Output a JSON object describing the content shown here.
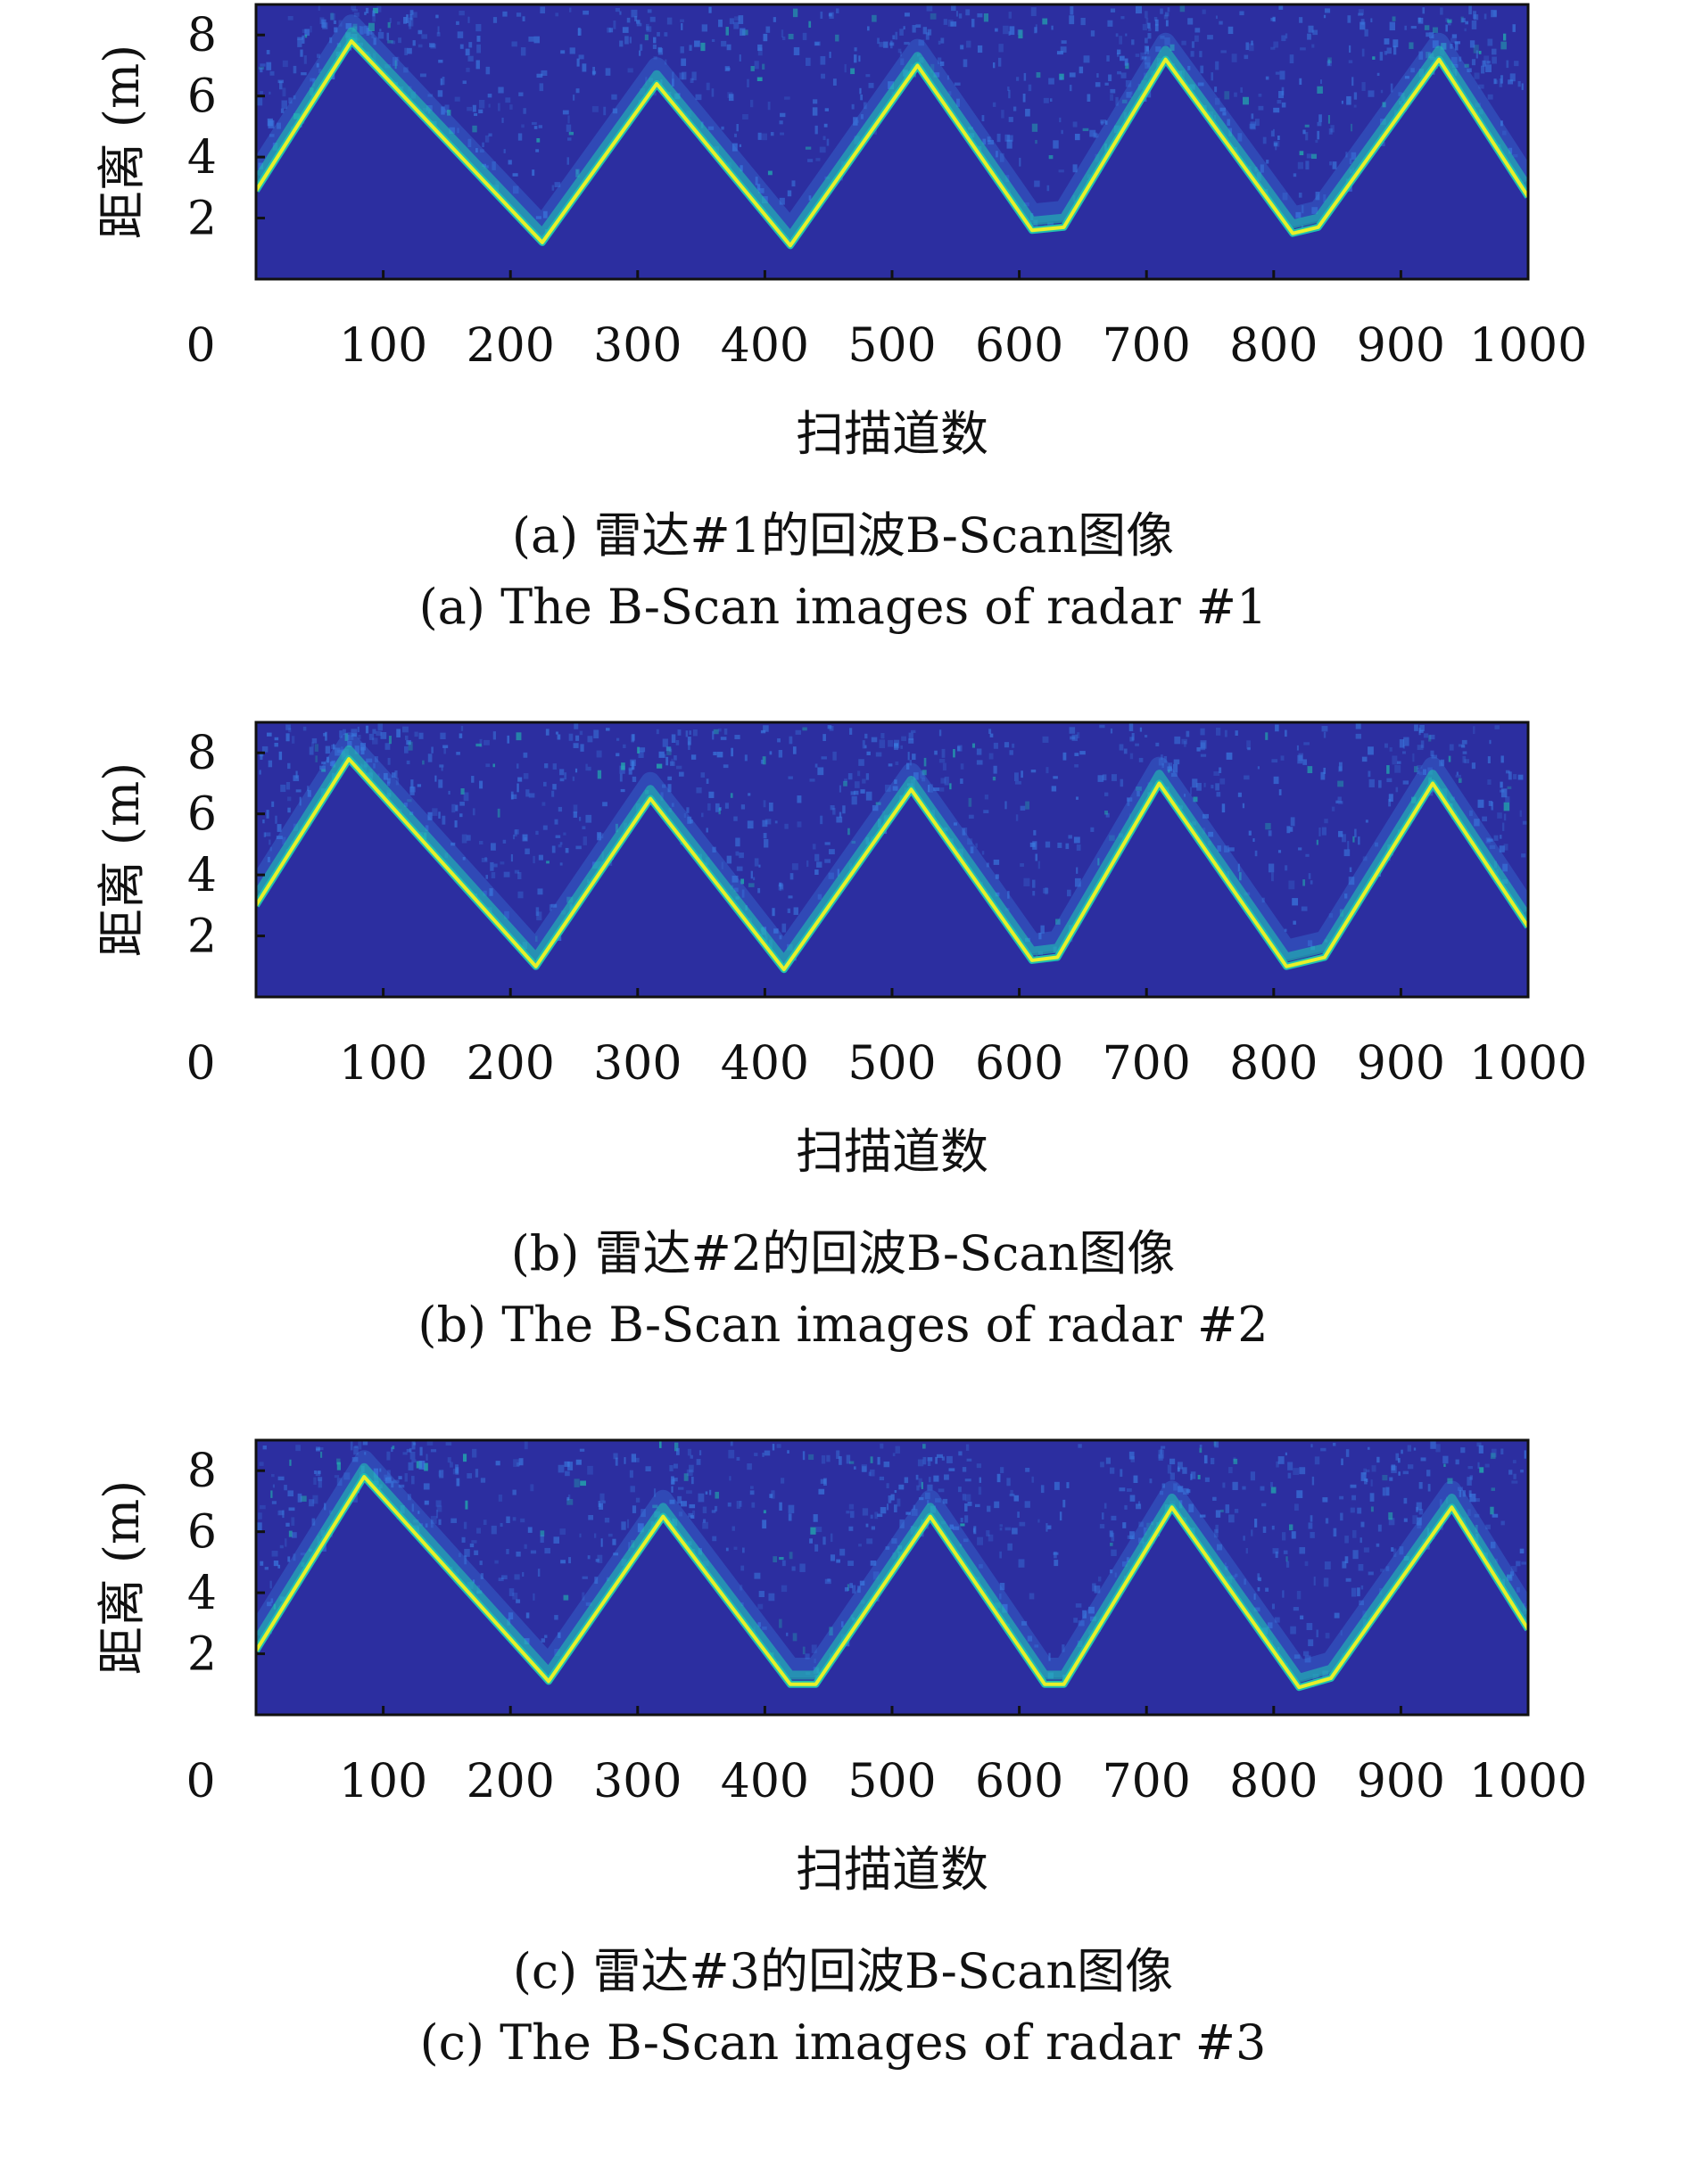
{
  "colors": {
    "background": "#2c2ea0",
    "echo_core": "#e8f02a",
    "echo_edge": "#20c0b0",
    "clutter": "#3a7be0",
    "frame": "#111111"
  },
  "chart_data": [
    {
      "type": "heatmap",
      "title": "",
      "xlabel": "扫描道数",
      "ylabel": "距离 (m)",
      "xlim": [
        0,
        1000
      ],
      "ylim": [
        0,
        9
      ],
      "xticks": [
        "0",
        "100",
        "200",
        "300",
        "400",
        "500",
        "600",
        "700",
        "800",
        "900",
        "1000"
      ],
      "yticks": [
        "2",
        "4",
        "6",
        "8"
      ],
      "colormap": "parula",
      "echo_trace": {
        "x": [
          0,
          75,
          225,
          315,
          420,
          520,
          610,
          635,
          715,
          815,
          835,
          930,
          1000
        ],
        "y": [
          2.9,
          7.8,
          1.2,
          6.4,
          1.1,
          7.0,
          1.6,
          1.7,
          7.2,
          1.5,
          1.7,
          7.2,
          2.7
        ]
      },
      "caption_zh": "(a) 雷达#1的回波B-Scan图像",
      "caption_en": "(a) The B-Scan images of radar #1"
    },
    {
      "type": "heatmap",
      "title": "",
      "xlabel": "扫描道数",
      "ylabel": "距离 (m)",
      "xlim": [
        0,
        1000
      ],
      "ylim": [
        0,
        9
      ],
      "xticks": [
        "0",
        "100",
        "200",
        "300",
        "400",
        "500",
        "600",
        "700",
        "800",
        "900",
        "1000"
      ],
      "yticks": [
        "2",
        "4",
        "6",
        "8"
      ],
      "colormap": "parula",
      "echo_trace": {
        "x": [
          0,
          73,
          220,
          310,
          415,
          515,
          610,
          630,
          710,
          810,
          840,
          925,
          1000
        ],
        "y": [
          3.0,
          7.8,
          1.0,
          6.5,
          0.9,
          6.8,
          1.2,
          1.3,
          7.0,
          1.0,
          1.3,
          7.0,
          2.3
        ]
      },
      "caption_zh": "(b) 雷达#2的回波B-Scan图像",
      "caption_en": "(b) The B-Scan images of radar #2"
    },
    {
      "type": "heatmap",
      "title": "",
      "xlabel": "扫描道数",
      "ylabel": "距离 (m)",
      "xlim": [
        0,
        1000
      ],
      "ylim": [
        0,
        9
      ],
      "xticks": [
        "0",
        "100",
        "200",
        "300",
        "400",
        "500",
        "600",
        "700",
        "800",
        "900",
        "1000"
      ],
      "yticks": [
        "2",
        "4",
        "6",
        "8"
      ],
      "colormap": "parula",
      "echo_trace": {
        "x": [
          0,
          85,
          230,
          320,
          420,
          440,
          530,
          620,
          635,
          720,
          820,
          845,
          940,
          1000
        ],
        "y": [
          2.1,
          7.8,
          1.1,
          6.5,
          1.0,
          1.0,
          6.5,
          1.0,
          1.0,
          6.8,
          0.9,
          1.2,
          6.8,
          2.8
        ]
      },
      "caption_zh": "(c) 雷达#3的回波B-Scan图像",
      "caption_en": "(c) The B-Scan images of radar #3"
    }
  ]
}
